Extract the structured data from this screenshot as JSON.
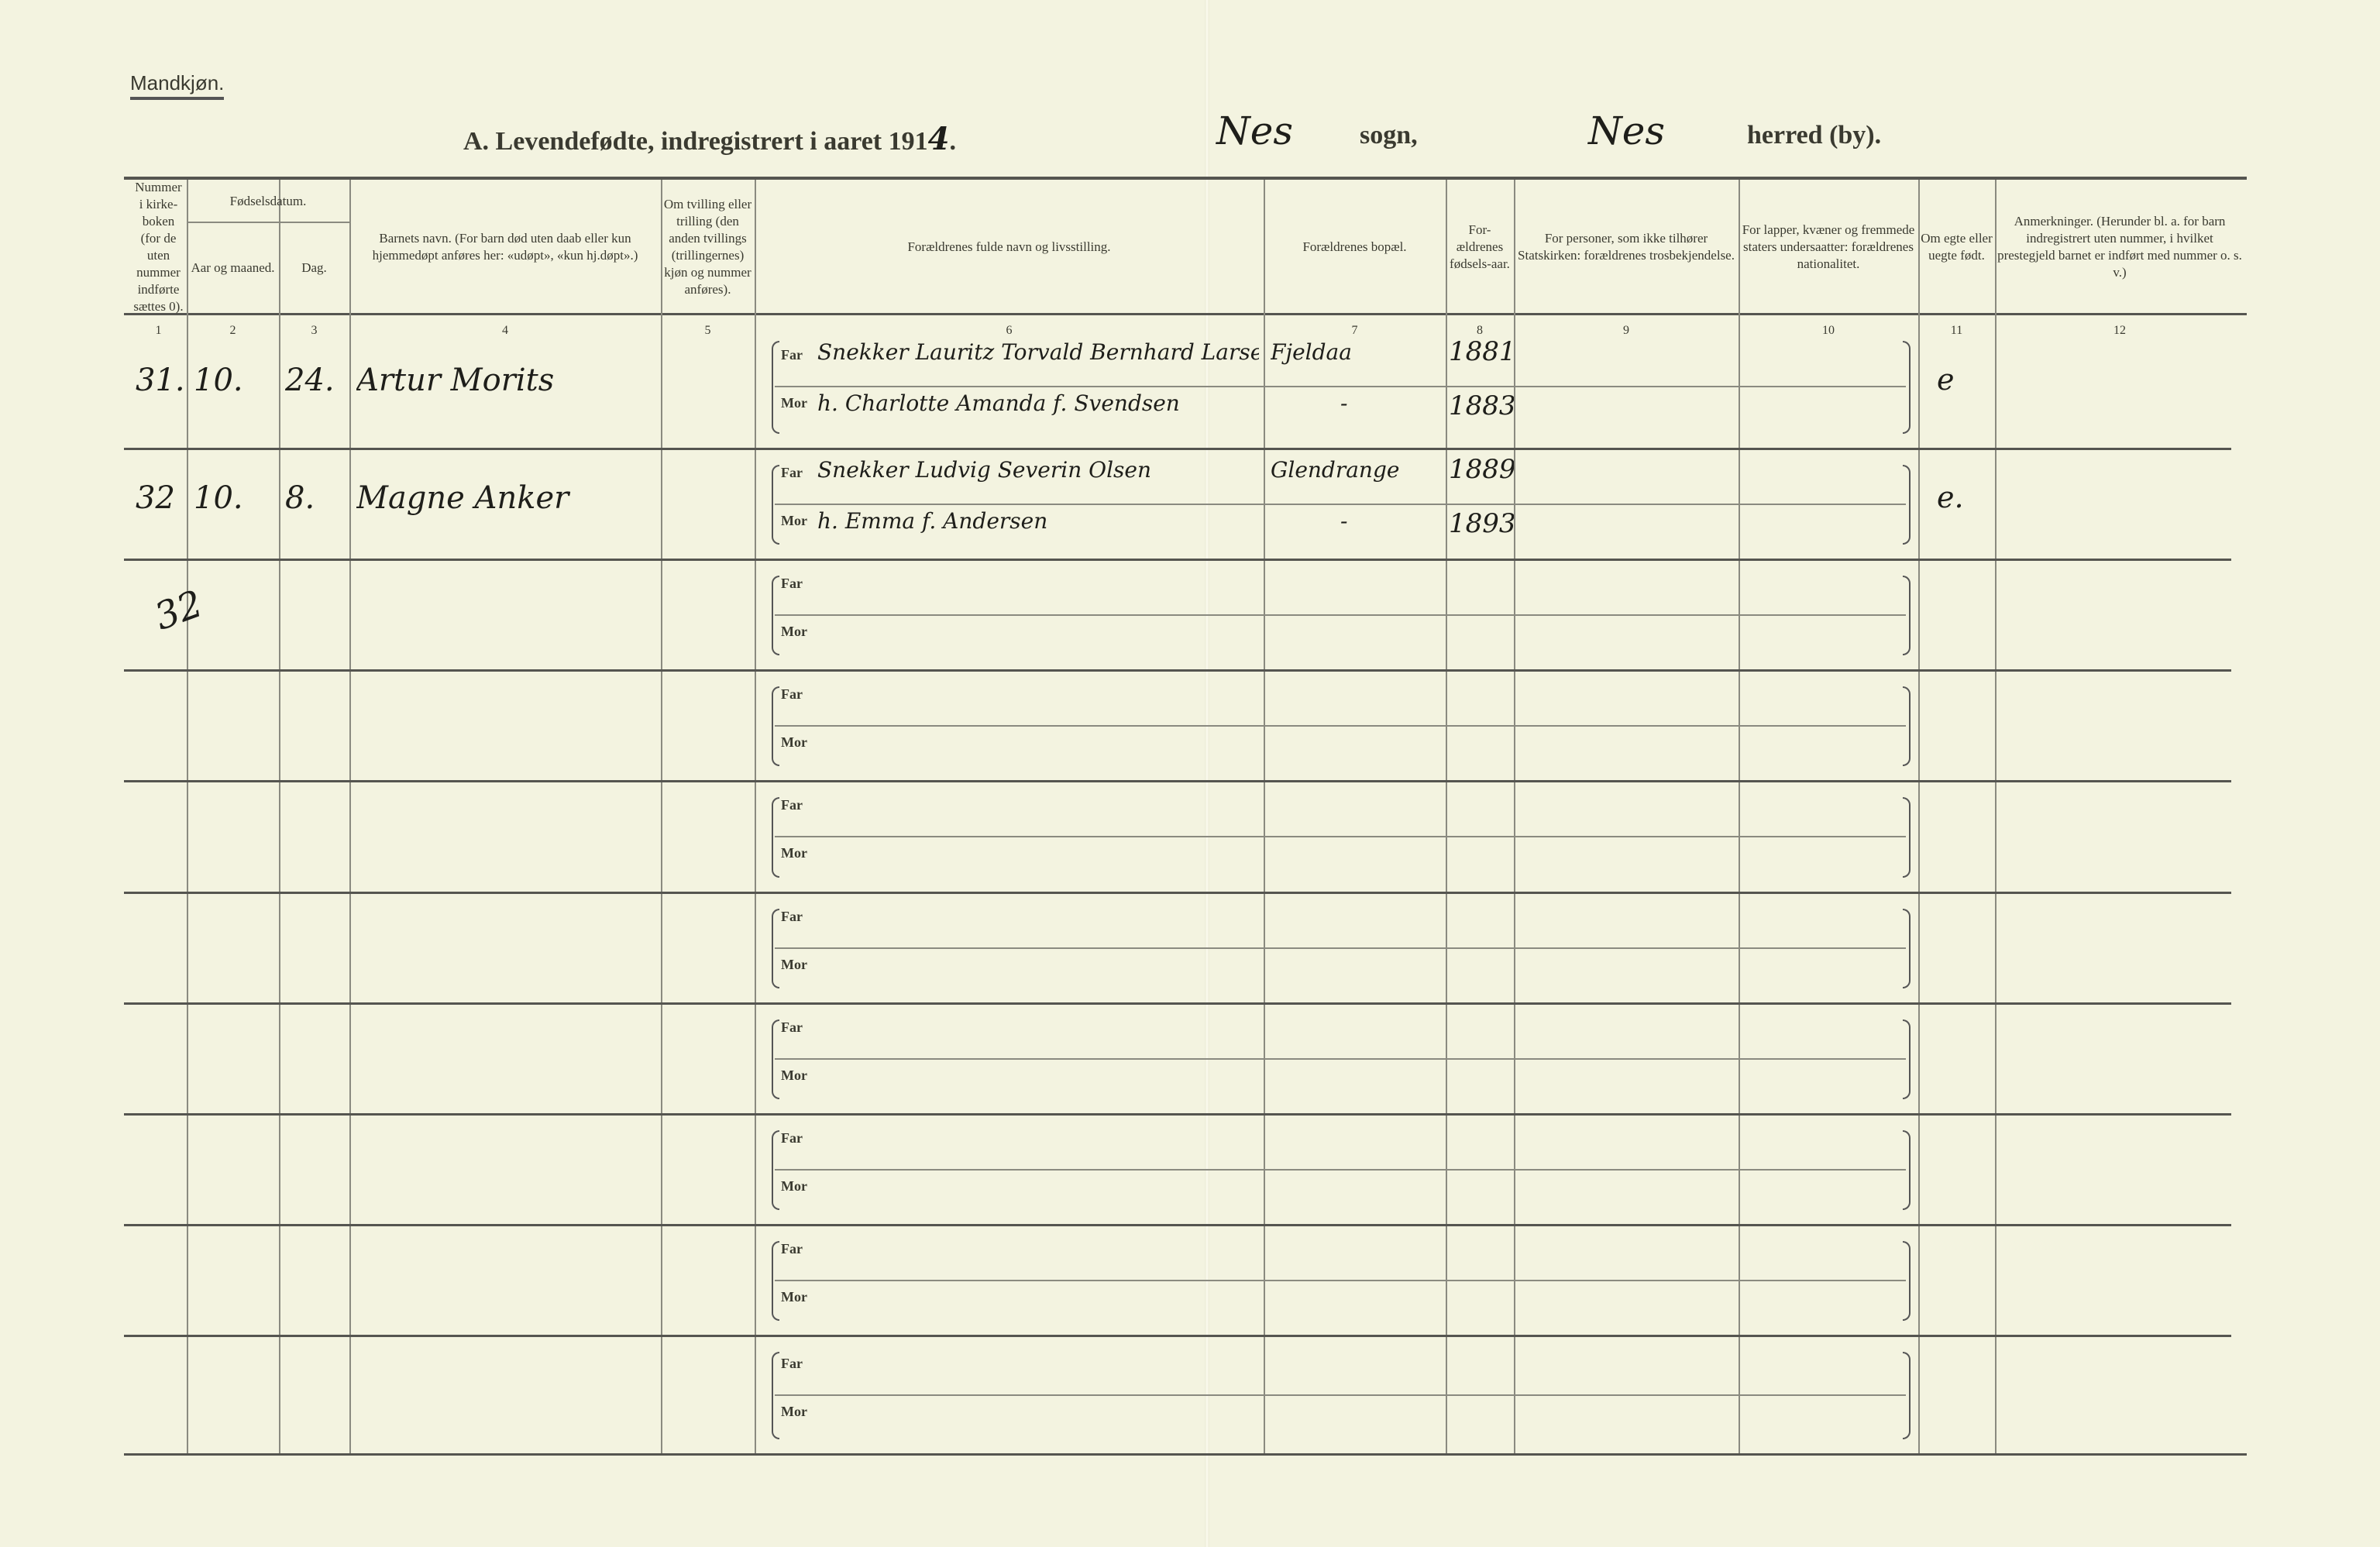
{
  "page": {
    "sex_label": "Mandkjøn.",
    "title_printed": "A. Levendefødte, indregistrert i aaret 191",
    "year_handwritten": "4",
    "title_dot": ".",
    "parish_handwritten": "Nes",
    "parish_label": "sogn,",
    "district_handwritten": "Nes",
    "district_label": "herred (by)."
  },
  "columns": [
    {
      "num": "1",
      "header": "Nummer i kirke-boken (for de uten nummer indførte sættes 0)."
    },
    {
      "num": "2",
      "header": "Aar og maaned."
    },
    {
      "num": "3",
      "header": "Dag."
    },
    {
      "num": "4",
      "header": "Barnets navn. (For barn død uten daab eller kun hjemmedøpt anføres her: «udøpt», «kun hj.døpt».)"
    },
    {
      "num": "5",
      "header": "Om tvilling eller trilling (den anden tvillings (trillingernes) kjøn og nummer anføres)."
    },
    {
      "num": "6",
      "header": "Forældrenes fulde navn og livsstilling."
    },
    {
      "num": "7",
      "header": "Forældrenes bopæl."
    },
    {
      "num": "8",
      "header": "For-ældrenes fødsels-aar."
    },
    {
      "num": "9",
      "header": "For personer, som ikke tilhører Statskirken: forældrenes trosbekjendelse."
    },
    {
      "num": "10",
      "header": "For lapper, kvæner og fremmede staters undersaatter: forældrenes nationalitet."
    },
    {
      "num": "11",
      "header": "Om egte eller uegte født."
    },
    {
      "num": "12",
      "header": "Anmerkninger. (Herunder bl. a. for barn indregistrert uten nummer, i hvilket prestegjeld barnet er indført med nummer o. s. v.)"
    }
  ],
  "date_group_header": "Fødselsdatum.",
  "labels": {
    "far": "Far",
    "mor": "Mor"
  },
  "rows": [
    {
      "number": "31.",
      "month": "10.",
      "day": "24.",
      "name": "Artur Morits",
      "twin": "",
      "far": "Snekker Lauritz Torvald Bernhard Larsen",
      "mor": "h. Charlotte Amanda f. Svendsen",
      "far_residence": "Fjeldaa",
      "mor_residence": "-",
      "far_year": "1881",
      "mor_year": "1883",
      "faith": "",
      "nationality": "",
      "legitimacy": "e",
      "remarks": ""
    },
    {
      "number": "32",
      "month": "10.",
      "day": "8.",
      "name": "Magne Anker",
      "twin": "",
      "far": "Snekker Ludvig Severin Olsen",
      "mor": "h. Emma f. Andersen",
      "far_residence": "Glendrange",
      "mor_residence": "-",
      "far_year": "1889",
      "mor_year": "1893",
      "faith": "",
      "nationality": "",
      "legitimacy": "e.",
      "remarks": ""
    }
  ],
  "empty_rows": 8,
  "margin_note": "32"
}
